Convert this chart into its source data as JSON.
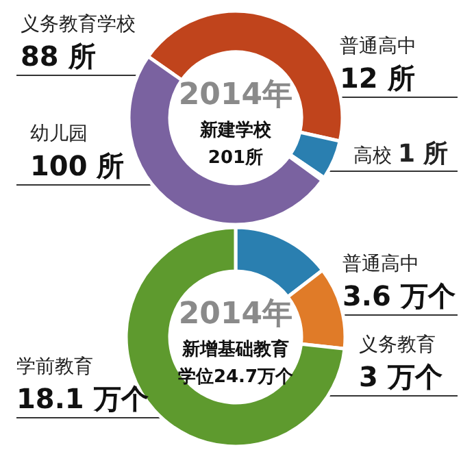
{
  "chart_data": [
    {
      "type": "donut",
      "title": "2014年",
      "annotations": [
        "新建学校",
        "201所"
      ],
      "categories": [
        "义务教育学校",
        "普通高中",
        "高校",
        "幼儿园"
      ],
      "values": [
        88,
        12,
        1,
        100
      ],
      "value_labels": [
        "88 所",
        "12 所",
        "1 所",
        "100 所"
      ],
      "colors": [
        "#c0441c",
        "#2a7fb0",
        "#e8873a",
        "#7a62a0"
      ]
    },
    {
      "type": "donut",
      "title": "2014年",
      "annotations": [
        "新增基础教育",
        "学位24.7万个"
      ],
      "categories": [
        "普通高中",
        "义务教育",
        "学前教育"
      ],
      "values": [
        3.6,
        3,
        18.1
      ],
      "value_labels": [
        "3.6 万个",
        "3 万个",
        "18.1 万个"
      ],
      "colors": [
        "#2a7fb0",
        "#e07b28",
        "#5e9a2e"
      ]
    }
  ]
}
